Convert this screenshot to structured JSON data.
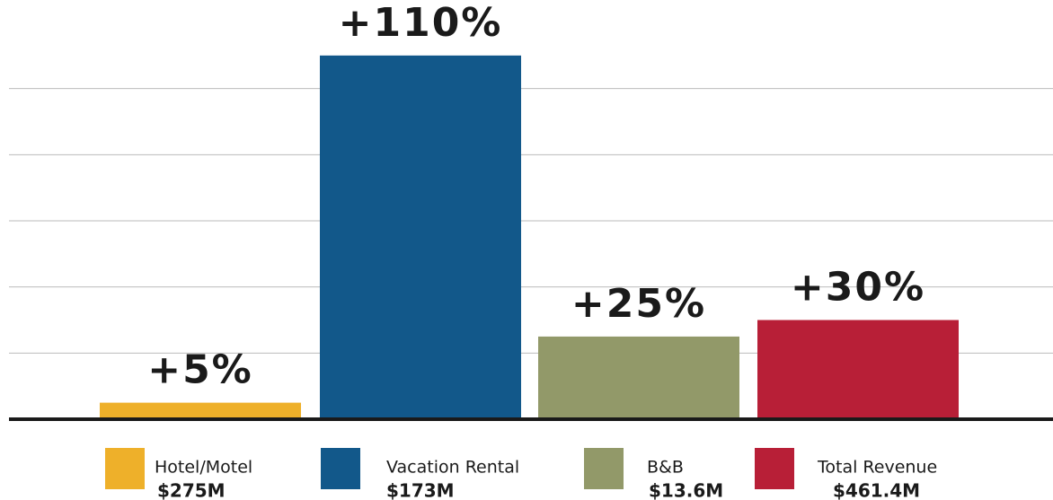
{
  "chart_data": {
    "type": "bar",
    "categories": [
      "Hotel/Motel",
      "Vacation Rental",
      "B&B",
      "Total Revenue"
    ],
    "values": [
      5,
      110,
      25,
      30
    ],
    "value_labels": [
      "+5%",
      "+110%",
      "+25%",
      "+30%"
    ],
    "colors": [
      "#eeb02a",
      "#12588a",
      "#929969",
      "#b81f37"
    ],
    "legend_values": [
      "$275M",
      "$173M",
      "$13.6M",
      "$461.4M"
    ],
    "ylim": [
      0,
      120
    ],
    "yticks": [
      0,
      20,
      40,
      60,
      80,
      100,
      120
    ],
    "grid": true
  }
}
